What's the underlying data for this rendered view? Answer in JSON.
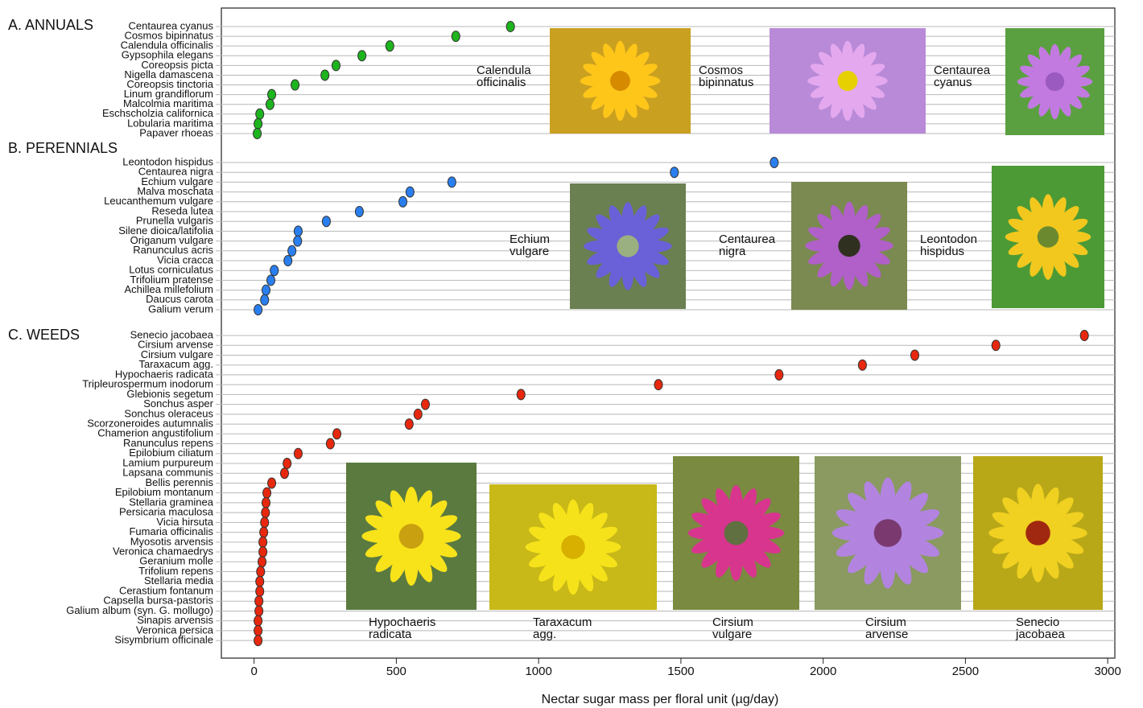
{
  "chart_data": {
    "type": "dot",
    "xlabel": "Nectar sugar mass per floral unit (µg/day)",
    "xlim": [
      -115,
      3025
    ],
    "xticks": [
      0,
      500,
      1000,
      1500,
      2000,
      2500,
      3000
    ],
    "groups": [
      {
        "name": "A. ANNUALS",
        "color": "#1db51d",
        "categories": [
          "Centaurea cyanus",
          "Cosmos bipinnatus",
          "Calendula officinalis",
          "Gypsophila elegans",
          "Coreopsis picta",
          "Nigella damascena",
          "Coreopsis tinctoria",
          "Linum grandiflorum",
          "Malcolmia maritima",
          "Eschscholzia californica",
          "Lobularia maritima",
          "Papaver rhoeas"
        ],
        "values": [
          901,
          709,
          477,
          379,
          288,
          249,
          144,
          62,
          56,
          20,
          14,
          11
        ],
        "photos": [
          [
            "Calendula",
            "officinalis"
          ],
          [
            "Cosmos",
            "bipinnatus"
          ],
          [
            "Centaurea",
            "cyanus"
          ]
        ]
      },
      {
        "name": "B. PERENNIALS",
        "color": "#2a7ff0",
        "categories": [
          "Leontodon hispidus",
          "Centaurea nigra",
          "Echium vulgare",
          "Malva moschata",
          "Leucanthemum vulgare",
          "Reseda lutea",
          "Prunella vulgaris",
          "Silene dioica/latifolia",
          "Origanum vulgare",
          "Ranunculus acris",
          "Vicia cracca",
          "Lotus corniculatus",
          "Trifolium pratense",
          "Achillea millefolium",
          "Daucus carota",
          "Galium verum"
        ],
        "values": [
          1828,
          1477,
          695,
          548,
          523,
          370,
          254,
          155,
          153,
          133,
          119,
          71,
          59,
          42,
          37,
          14
        ],
        "photos": [
          [
            "Echium",
            "vulgare"
          ],
          [
            "Centaurea",
            "nigra"
          ],
          [
            "Leontodon",
            "hispidus"
          ]
        ]
      },
      {
        "name": "C. WEEDS",
        "color": "#e8280e",
        "categories": [
          "Senecio jacobaea",
          "Cirsium arvense",
          "Cirsium vulgare",
          "Taraxacum agg.",
          "Hypochaeris radicata",
          "Tripleurospermum inodorum",
          "Glebionis segetum",
          "Sonchus asper",
          "Sonchus oleraceus",
          "Scorzoneroides autumnalis",
          "Chamerion angustifolium",
          "Ranunculus repens",
          "Epilobium ciliatum",
          "Lamium purpureum",
          "Lapsana communis",
          "Bellis perennis",
          "Epilobium montanum",
          "Stellaria graminea",
          "Persicaria maculosa",
          "Vicia hirsuta",
          "Fumaria officinalis",
          "Myosotis arvensis",
          "Veronica chamaedrys",
          "Geranium molle",
          "Trifolium repens",
          "Stellaria media",
          "Cerastium fontanum",
          "Capsella bursa-pastoris",
          "Galium album (syn. G. mollugo)",
          "Sinapis arvensis",
          "Veronica persica",
          "Sisymbrium officinale"
        ],
        "values": [
          2918,
          2607,
          2322,
          2138,
          1845,
          1421,
          938,
          602,
          576,
          545,
          291,
          268,
          155,
          116,
          107,
          62,
          45,
          42,
          40,
          37,
          34,
          31,
          31,
          28,
          23,
          20,
          20,
          17,
          17,
          14,
          14,
          14
        ],
        "photos": [
          [
            "Hypochaeris",
            "radicata"
          ],
          [
            "Taraxacum",
            "agg."
          ],
          [
            "Cirsium",
            "vulgare"
          ],
          [
            "Cirsium",
            "arvense"
          ],
          [
            "Senecio",
            "jacobaea"
          ]
        ]
      }
    ]
  }
}
